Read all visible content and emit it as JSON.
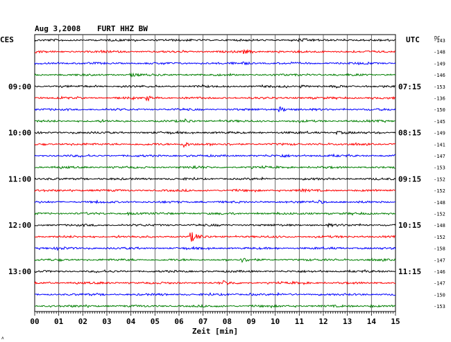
{
  "header": {
    "date": "Aug 3,2008",
    "station": "FURT HHZ BW",
    "left_zone": "CES",
    "right_zone": "UTC",
    "dc_label": "DC"
  },
  "footer": {
    "x_label": "Zeit [min]",
    "corner_mark": "ʌ"
  },
  "chart_data": {
    "type": "line",
    "title": "Aug 3,2008   FURT HHZ BW",
    "xlabel": "Zeit [min]",
    "xlim": [
      0,
      15
    ],
    "x_ticks": [
      "00",
      "01",
      "02",
      "03",
      "04",
      "05",
      "06",
      "07",
      "08",
      "09",
      "10",
      "11",
      "12",
      "13",
      "14",
      "15"
    ],
    "grid": true,
    "series_colors": [
      "#000000",
      "#ff0000",
      "#0000ff",
      "#007f00"
    ],
    "left_time_labels": [
      {
        "row": 4,
        "text": "09:00"
      },
      {
        "row": 8,
        "text": "10:00"
      },
      {
        "row": 12,
        "text": "11:00"
      },
      {
        "row": 16,
        "text": "12:00"
      },
      {
        "row": 20,
        "text": "13:00"
      }
    ],
    "right_time_labels": [
      {
        "row": 4,
        "text": "07:15"
      },
      {
        "row": 8,
        "text": "08:15"
      },
      {
        "row": 12,
        "text": "09:15"
      },
      {
        "row": 16,
        "text": "10:15"
      },
      {
        "row": 20,
        "text": "11:15"
      }
    ],
    "dc_offsets": [
      -143,
      -148,
      -149,
      -146,
      -153,
      -136,
      -150,
      -145,
      -149,
      -141,
      -147,
      -153,
      -152,
      -152,
      -148,
      -152,
      -148,
      -152,
      -158,
      -147,
      -146,
      -147,
      -150,
      -153
    ],
    "events": [
      {
        "row": 0,
        "minute": 11.0,
        "amp": 1.4
      },
      {
        "row": 1,
        "minute": 8.7,
        "amp": 2.0
      },
      {
        "row": 2,
        "minute": 8.7,
        "amp": 1.5
      },
      {
        "row": 3,
        "minute": 4.0,
        "amp": 1.8
      },
      {
        "row": 4,
        "minute": 11.1,
        "amp": 1.4
      },
      {
        "row": 5,
        "minute": 4.7,
        "amp": 2.5
      },
      {
        "row": 6,
        "minute": 10.2,
        "amp": 3.5
      },
      {
        "row": 7,
        "minute": 6.3,
        "amp": 2.0
      },
      {
        "row": 8,
        "minute": 12.6,
        "amp": 1.4
      },
      {
        "row": 9,
        "minute": 6.1,
        "amp": 5.5
      },
      {
        "row": 10,
        "minute": 10.3,
        "amp": 1.3
      },
      {
        "row": 11,
        "minute": 6.6,
        "amp": 1.6
      },
      {
        "row": 13,
        "minute": 11.0,
        "amp": 1.3
      },
      {
        "row": 14,
        "minute": 11.8,
        "amp": 2.2
      },
      {
        "row": 15,
        "minute": 3.9,
        "amp": 1.4
      },
      {
        "row": 16,
        "minute": 12.2,
        "amp": 1.3
      },
      {
        "row": 17,
        "minute": 6.5,
        "amp": 7.0
      },
      {
        "row": 18,
        "minute": 1.0,
        "amp": 1.6
      },
      {
        "row": 19,
        "minute": 8.6,
        "amp": 2.2
      },
      {
        "row": 21,
        "minute": 7.9,
        "amp": 2.2
      },
      {
        "row": 22,
        "minute": 9.0,
        "amp": 1.2
      },
      {
        "row": 23,
        "minute": 14.0,
        "amp": 1.2
      }
    ]
  }
}
